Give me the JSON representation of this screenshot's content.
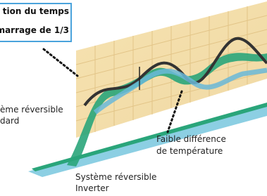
{
  "callouts": [
    {
      "lines": [
        "tion du temps",
        "marrage de 1/3"
      ]
    },
    {
      "lines": [
        "ème réversible",
        "dard"
      ]
    },
    {
      "lines": [
        "Faible différence",
        "de température"
      ]
    },
    {
      "lines": [
        "Système réversible",
        "Inverter"
      ]
    }
  ]
}
